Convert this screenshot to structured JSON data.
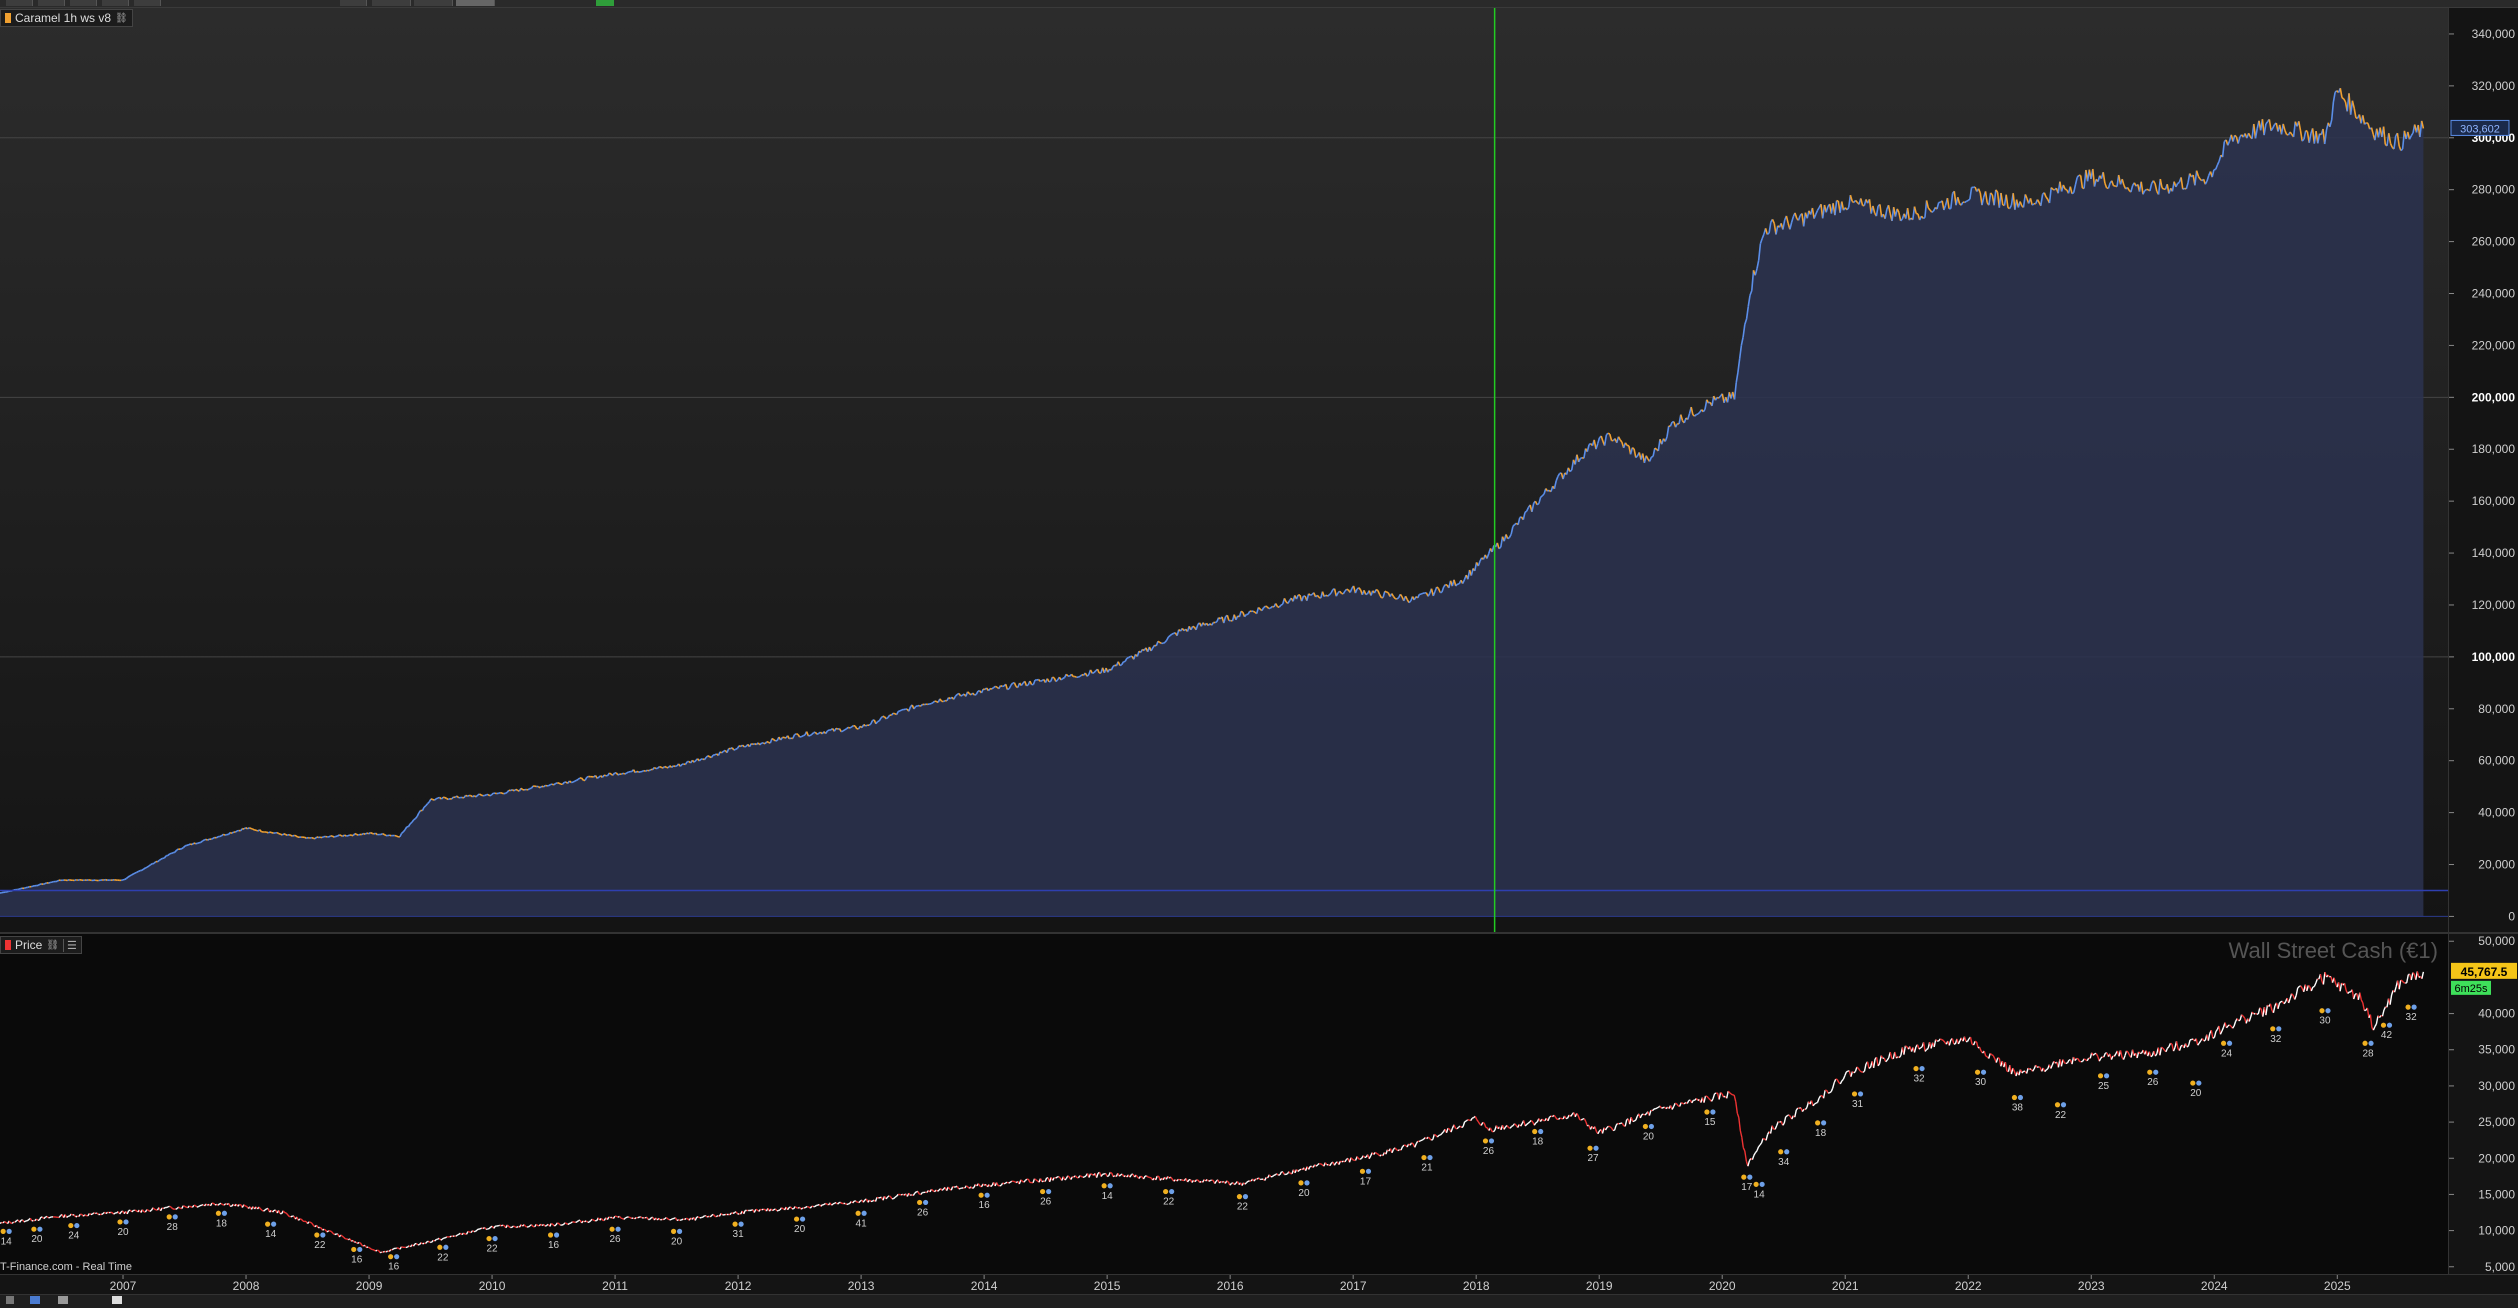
{
  "top_pane": {
    "legend_label": "Caramel 1h ws v8",
    "last_value_label": "303,602",
    "colors": {
      "line_up": "#f0a030",
      "line_down": "#5b8ee8",
      "fill": "#2c3350",
      "vline": "#22cc22",
      "baseline": "#2e3fb0"
    }
  },
  "bottom_pane": {
    "legend_label": "Price",
    "instrument_title": "Wall Street Cash (€1)",
    "price_label": "45,767.5",
    "timer_label": "6m25s",
    "source_label": "T-Finance.com - Real Time",
    "colors": {
      "up": "#ffffff",
      "down": "#ee3333",
      "price_badge": "#f5c518",
      "timer_badge": "#3ee05a",
      "marker_blue": "#6ea0e8",
      "marker_orange": "#f0b020"
    }
  },
  "chart_data": [
    {
      "type": "area",
      "series": [
        {
          "name": "Caramel 1h ws v8",
          "x": [
            2006.0,
            2006.5,
            2007.0,
            2007.5,
            2008.0,
            2008.5,
            2009.0,
            2009.25,
            2009.5,
            2010.0,
            2010.5,
            2011.0,
            2011.5,
            2012.0,
            2012.5,
            2013.0,
            2013.5,
            2014.0,
            2014.5,
            2015.0,
            2015.3,
            2015.6,
            2016.0,
            2016.5,
            2017.0,
            2017.5,
            2017.9,
            2018.2,
            2018.5,
            2018.9,
            2019.1,
            2019.4,
            2019.6,
            2019.9,
            2020.1,
            2020.22,
            2020.35,
            2020.6,
            2021.0,
            2021.5,
            2022.0,
            2022.5,
            2023.0,
            2023.5,
            2023.95,
            2024.15,
            2024.5,
            2024.9,
            2025.0,
            2025.3,
            2025.5,
            2025.7
          ],
          "values": [
            9000,
            14000,
            14000,
            27000,
            34000,
            30000,
            32000,
            31000,
            45000,
            47000,
            51000,
            55000,
            58000,
            65000,
            70000,
            73000,
            82000,
            87000,
            91000,
            95000,
            102000,
            110000,
            115000,
            122000,
            126000,
            122000,
            130000,
            144000,
            160000,
            180000,
            185000,
            175000,
            190000,
            198000,
            200000,
            240000,
            265000,
            268000,
            275000,
            270000,
            278000,
            275000,
            285000,
            280000,
            285000,
            300000,
            305000,
            300000,
            318000,
            303000,
            298000,
            303602
          ]
        }
      ],
      "xlim": [
        2006.0,
        2025.9
      ],
      "ylim": [
        -6000,
        350000
      ],
      "yticks": [
        0,
        20000,
        40000,
        60000,
        80000,
        100000,
        120000,
        140000,
        160000,
        180000,
        200000,
        220000,
        240000,
        260000,
        280000,
        300000,
        320000,
        340000
      ],
      "ytick_labels": [
        "0",
        "20,000",
        "40,000",
        "60,000",
        "80,000",
        "100,000",
        "120,000",
        "140,000",
        "160,000",
        "180,000",
        "200,000",
        "220,000",
        "240,000",
        "260,000",
        "280,000",
        "300,000",
        "320,000",
        "340,000"
      ],
      "bold_ticks": [
        100000,
        200000,
        300000
      ],
      "vertical_marker_x": 2018.15,
      "baseline_value": 10000
    },
    {
      "type": "line",
      "series": [
        {
          "name": "Wall Street Cash (€1)",
          "x": [
            2006.0,
            2006.5,
            2007.0,
            2007.8,
            2008.3,
            2008.8,
            2009.1,
            2009.5,
            2010.0,
            2010.5,
            2011.0,
            2011.6,
            2012.0,
            2012.5,
            2013.0,
            2013.5,
            2014.0,
            2014.5,
            2015.0,
            2015.6,
            2016.1,
            2016.5,
            2017.0,
            2017.5,
            2018.0,
            2018.1,
            2018.8,
            2019.0,
            2019.5,
            2020.1,
            2020.2,
            2020.4,
            2020.8,
            2021.0,
            2021.5,
            2022.0,
            2022.4,
            2022.8,
            2023.0,
            2023.5,
            2023.9,
            2024.2,
            2024.5,
            2024.9,
            2025.2,
            2025.3,
            2025.5,
            2025.7
          ],
          "values": [
            11000,
            12000,
            12500,
            13800,
            12500,
            9000,
            7000,
            8500,
            10500,
            10800,
            11800,
            11500,
            12500,
            13200,
            14000,
            15300,
            16300,
            17000,
            17800,
            17000,
            16500,
            18200,
            19800,
            21800,
            25500,
            24000,
            26000,
            23500,
            26800,
            29000,
            19000,
            24000,
            28500,
            31500,
            35000,
            36500,
            31500,
            33500,
            34000,
            34500,
            36500,
            39000,
            41000,
            45000,
            42000,
            38000,
            44000,
            45767.5
          ]
        }
      ],
      "xlim": [
        2006.0,
        2025.9
      ],
      "ylim": [
        4000,
        51000
      ],
      "yticks": [
        5000,
        10000,
        15000,
        20000,
        25000,
        30000,
        35000,
        40000,
        50000
      ],
      "ytick_labels": [
        "5,000",
        "10,000",
        "15,000",
        "20,000",
        "25,000",
        "30,000",
        "35,000",
        "40,000",
        "50,000"
      ],
      "x_ticks": [
        2007,
        2008,
        2009,
        2010,
        2011,
        2012,
        2013,
        2014,
        2015,
        2016,
        2017,
        2018,
        2019,
        2020,
        2021,
        2022,
        2023,
        2024,
        2025
      ],
      "x_tick_labels": [
        "2007",
        "2008",
        "2009",
        "2010",
        "2011",
        "2012",
        "2013",
        "2014",
        "2015",
        "2016",
        "2017",
        "2018",
        "2019",
        "2020",
        "2021",
        "2022",
        "2023",
        "2024",
        "2025"
      ],
      "trade_markers": [
        {
          "x": 2006.05,
          "v": 11000,
          "label": "14"
        },
        {
          "x": 2006.3,
          "v": 11300,
          "label": "20"
        },
        {
          "x": 2006.6,
          "v": 11800,
          "label": "24"
        },
        {
          "x": 2007.0,
          "v": 12300,
          "label": "20"
        },
        {
          "x": 2007.4,
          "v": 13000,
          "label": "28"
        },
        {
          "x": 2007.8,
          "v": 13500,
          "label": "18"
        },
        {
          "x": 2008.2,
          "v": 12000,
          "label": "14"
        },
        {
          "x": 2008.6,
          "v": 10500,
          "label": "22"
        },
        {
          "x": 2008.9,
          "v": 8500,
          "label": "16"
        },
        {
          "x": 2009.2,
          "v": 7500,
          "label": "16"
        },
        {
          "x": 2009.6,
          "v": 8800,
          "label": "22"
        },
        {
          "x": 2010.0,
          "v": 10000,
          "label": "22"
        },
        {
          "x": 2010.5,
          "v": 10500,
          "label": "16"
        },
        {
          "x": 2011.0,
          "v": 11300,
          "label": "26"
        },
        {
          "x": 2011.5,
          "v": 11000,
          "label": "20"
        },
        {
          "x": 2012.0,
          "v": 12000,
          "label": "31"
        },
        {
          "x": 2012.5,
          "v": 12700,
          "label": "20"
        },
        {
          "x": 2013.0,
          "v": 13500,
          "label": "41"
        },
        {
          "x": 2013.5,
          "v": 15000,
          "label": "26"
        },
        {
          "x": 2014.0,
          "v": 16000,
          "label": "16"
        },
        {
          "x": 2014.5,
          "v": 16500,
          "label": "26"
        },
        {
          "x": 2015.0,
          "v": 17300,
          "label": "14"
        },
        {
          "x": 2015.5,
          "v": 16500,
          "label": "22"
        },
        {
          "x": 2016.1,
          "v": 15800,
          "label": "22"
        },
        {
          "x": 2016.6,
          "v": 17700,
          "label": "20"
        },
        {
          "x": 2017.1,
          "v": 19300,
          "label": "17"
        },
        {
          "x": 2017.6,
          "v": 21200,
          "label": "21"
        },
        {
          "x": 2018.1,
          "v": 23500,
          "label": "26"
        },
        {
          "x": 2018.5,
          "v": 24800,
          "label": "18"
        },
        {
          "x": 2018.95,
          "v": 22500,
          "label": "27"
        },
        {
          "x": 2019.4,
          "v": 25500,
          "label": "20"
        },
        {
          "x": 2019.9,
          "v": 27500,
          "label": "15"
        },
        {
          "x": 2020.2,
          "v": 18500,
          "label": "17"
        },
        {
          "x": 2020.3,
          "v": 17500,
          "label": "14"
        },
        {
          "x": 2020.5,
          "v": 22000,
          "label": "34"
        },
        {
          "x": 2020.8,
          "v": 26000,
          "label": "18"
        },
        {
          "x": 2021.1,
          "v": 30000,
          "label": "31"
        },
        {
          "x": 2021.6,
          "v": 33500,
          "label": "32"
        },
        {
          "x": 2022.1,
          "v": 33000,
          "label": "30"
        },
        {
          "x": 2022.4,
          "v": 29500,
          "label": "38"
        },
        {
          "x": 2022.75,
          "v": 28500,
          "label": "22"
        },
        {
          "x": 2023.1,
          "v": 32500,
          "label": "25"
        },
        {
          "x": 2023.5,
          "v": 33000,
          "label": "26"
        },
        {
          "x": 2023.85,
          "v": 31500,
          "label": "20"
        },
        {
          "x": 2024.1,
          "v": 37000,
          "label": "24"
        },
        {
          "x": 2024.5,
          "v": 39000,
          "label": "32"
        },
        {
          "x": 2024.9,
          "v": 41500,
          "label": "30"
        },
        {
          "x": 2025.25,
          "v": 37000,
          "label": "28"
        },
        {
          "x": 2025.4,
          "v": 39500,
          "label": "42"
        },
        {
          "x": 2025.6,
          "v": 42000,
          "label": "32"
        }
      ]
    }
  ]
}
